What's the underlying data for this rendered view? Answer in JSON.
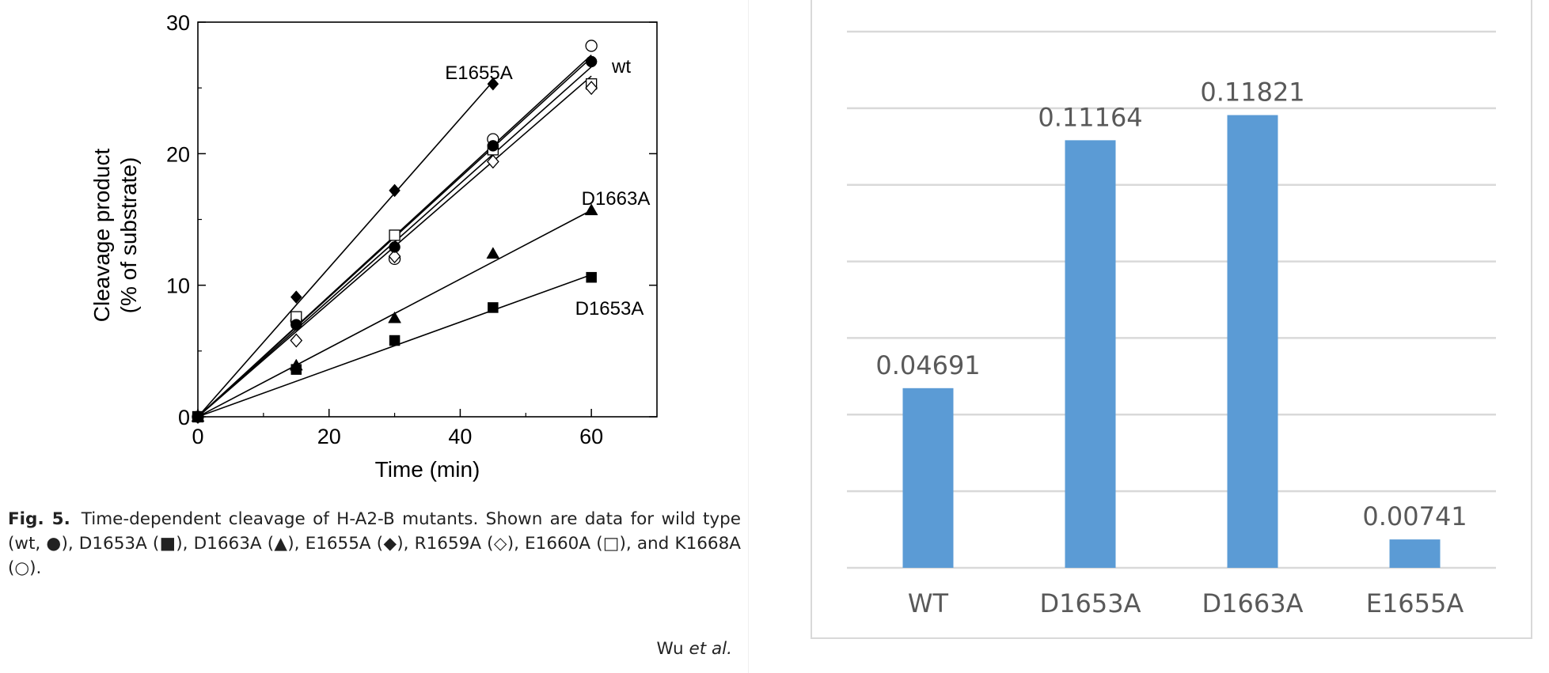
{
  "chart_data": [
    {
      "type": "scatter",
      "title": "",
      "xlabel": "Time (min)",
      "ylabel": [
        "Cleavage product",
        "(% of substrate)"
      ],
      "xlim": [
        0,
        70
      ],
      "ylim": [
        0,
        30
      ],
      "xticks": [
        0,
        20,
        40,
        60
      ],
      "yticks": [
        0,
        10,
        20,
        30
      ],
      "grid": false,
      "series": [
        {
          "name": "wt",
          "marker": "filled-circle",
          "x": [
            0,
            15,
            30,
            45,
            60
          ],
          "y": [
            0,
            7.0,
            12.9,
            20.6,
            27.0
          ],
          "fit": [
            0,
            27.5
          ]
        },
        {
          "name": "K1668A",
          "marker": "open-circle",
          "x": [
            0,
            15,
            30,
            45,
            60
          ],
          "y": [
            0,
            7.3,
            12.0,
            21.1,
            28.2
          ],
          "fit": [
            0,
            27.3
          ]
        },
        {
          "name": "E1660A",
          "marker": "open-square",
          "x": [
            0,
            15,
            30,
            45,
            60
          ],
          "y": [
            0,
            7.6,
            13.8,
            20.3,
            25.3
          ],
          "fit": [
            0,
            26.6
          ]
        },
        {
          "name": "R1659A",
          "marker": "open-diamond",
          "x": [
            0,
            15,
            30,
            45,
            60
          ],
          "y": [
            0,
            5.8,
            12.2,
            19.4,
            25.0
          ],
          "fit": [
            0,
            25.9
          ]
        },
        {
          "name": "E1655A",
          "marker": "filled-diamond",
          "x": [
            0,
            15,
            30,
            45
          ],
          "y": [
            0,
            9.1,
            17.2,
            25.3
          ],
          "fit": [
            0,
            25.5
          ],
          "fit_xmax": 45
        },
        {
          "name": "D1663A",
          "marker": "filled-triangle",
          "x": [
            0,
            15,
            30,
            45,
            60
          ],
          "y": [
            0,
            3.9,
            7.5,
            12.4,
            15.7
          ],
          "fit": [
            0,
            15.7
          ]
        },
        {
          "name": "D1653A",
          "marker": "filled-square",
          "x": [
            0,
            15,
            30,
            45,
            60
          ],
          "y": [
            0,
            3.6,
            5.8,
            8.3,
            10.6
          ],
          "fit": [
            0,
            10.8
          ]
        }
      ],
      "annotations": [
        {
          "text": "E1655A",
          "near": "E1655A"
        },
        {
          "text": "wt",
          "near": "wt"
        },
        {
          "text": "D1663A",
          "near": "D1663A"
        },
        {
          "text": "D1653A",
          "near": "D1653A"
        }
      ]
    },
    {
      "type": "bar",
      "title": "",
      "categories": [
        "WT",
        "D1653A",
        "D1663A",
        "E1655A"
      ],
      "values": [
        0.04691,
        0.11164,
        0.11821,
        0.00741
      ],
      "value_labels": [
        "0.04691",
        "0.11164",
        "0.11821",
        "0.00741"
      ],
      "ylim": [
        0,
        0.14
      ],
      "gridlines": [
        0,
        0.02,
        0.04,
        0.06,
        0.08,
        0.1,
        0.12,
        0.14
      ],
      "show_y_tick_labels": false,
      "grid": true,
      "bar_color": "#5b9bd5",
      "grid_color": "#d9d9d9",
      "label_color": "#595959"
    }
  ],
  "caption": {
    "fig_label": "Fig. 5.",
    "text": "Time-dependent cleavage of H-A2-B mutants. Shown are data for wild type (wt, ●), D1653A (■), D1663A (▲), E1655A (◆), R1659A (◇), E1660A (□), and K1668A (○)."
  },
  "credit": {
    "authors": "Wu",
    "etal": "et al."
  }
}
